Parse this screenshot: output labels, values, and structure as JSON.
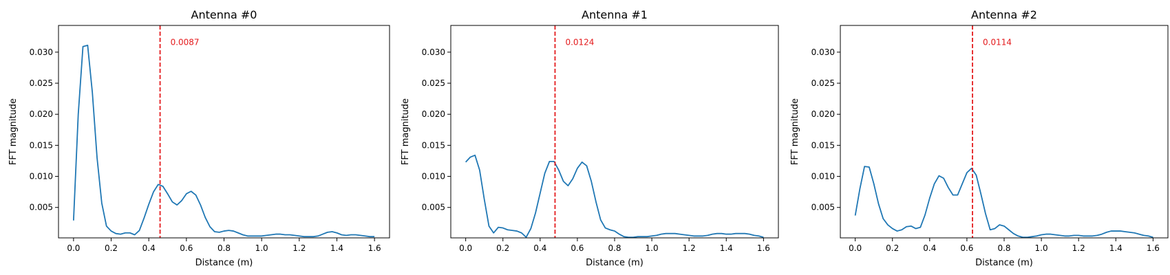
{
  "chart_data": [
    {
      "type": "line",
      "title": "Antenna #0",
      "xlabel": "Distance (m)",
      "ylabel": "FFT magnitude",
      "xlim": [
        -0.08,
        1.68
      ],
      "ylim": [
        0.0001,
        0.0343
      ],
      "xticks": [
        0.0,
        0.2,
        0.4,
        0.6,
        0.8,
        1.0,
        1.2,
        1.4,
        1.6
      ],
      "xtick_labels": [
        "0.0",
        "0.2",
        "0.4",
        "0.6",
        "0.8",
        "1.0",
        "1.2",
        "1.4",
        "1.6"
      ],
      "yticks": [
        0.005,
        0.01,
        0.015,
        0.02,
        0.025,
        0.03
      ],
      "ytick_labels": [
        "0.005",
        "0.010",
        "0.015",
        "0.020",
        "0.025",
        "0.030"
      ],
      "series": [
        {
          "color": "#1f77b4",
          "x": [
            0.0,
            0.025,
            0.05,
            0.075,
            0.1,
            0.125,
            0.15,
            0.175,
            0.2,
            0.225,
            0.25,
            0.275,
            0.3,
            0.325,
            0.35,
            0.375,
            0.4,
            0.425,
            0.45,
            0.475,
            0.5,
            0.525,
            0.55,
            0.575,
            0.6,
            0.625,
            0.65,
            0.675,
            0.7,
            0.725,
            0.75,
            0.775,
            0.8,
            0.825,
            0.85,
            0.875,
            0.9,
            0.925,
            0.95,
            0.975,
            1.0,
            1.025,
            1.05,
            1.075,
            1.1,
            1.125,
            1.15,
            1.175,
            1.2,
            1.225,
            1.25,
            1.275,
            1.3,
            1.325,
            1.35,
            1.375,
            1.4,
            1.425,
            1.45,
            1.475,
            1.5,
            1.525,
            1.55,
            1.575,
            1.6
          ],
          "y": [
            0.0029,
            0.02,
            0.0309,
            0.0311,
            0.0235,
            0.013,
            0.0057,
            0.002,
            0.0012,
            0.0008,
            0.0007,
            0.0009,
            0.0009,
            0.0006,
            0.0013,
            0.0033,
            0.0055,
            0.0075,
            0.0087,
            0.0084,
            0.0072,
            0.0059,
            0.0054,
            0.0061,
            0.0072,
            0.0076,
            0.007,
            0.0054,
            0.0034,
            0.0019,
            0.0011,
            0.001,
            0.0012,
            0.0013,
            0.0012,
            0.0009,
            0.0006,
            0.0004,
            0.0004,
            0.0004,
            0.0004,
            0.0005,
            0.0006,
            0.0007,
            0.0007,
            0.0006,
            0.0006,
            0.0005,
            0.0004,
            0.0003,
            0.0003,
            0.0003,
            0.0004,
            0.0007,
            0.001,
            0.0011,
            0.0009,
            0.0006,
            0.0005,
            0.0006,
            0.0006,
            0.0005,
            0.0004,
            0.0003,
            0.0003
          ]
        }
      ],
      "marker": {
        "x": 0.46,
        "label": "0.0087",
        "label_y": 0.0317,
        "color": "#e41a1c"
      }
    },
    {
      "type": "line",
      "title": "Antenna #1",
      "xlabel": "Distance (m)",
      "ylabel": "FFT magnitude",
      "xlim": [
        -0.08,
        1.68
      ],
      "ylim": [
        0.0001,
        0.0343
      ],
      "xticks": [
        0.0,
        0.2,
        0.4,
        0.6,
        0.8,
        1.0,
        1.2,
        1.4,
        1.6
      ],
      "xtick_labels": [
        "0.0",
        "0.2",
        "0.4",
        "0.6",
        "0.8",
        "1.0",
        "1.2",
        "1.4",
        "1.6"
      ],
      "yticks": [
        0.005,
        0.01,
        0.015,
        0.02,
        0.025,
        0.03
      ],
      "ytick_labels": [
        "0.005",
        "0.010",
        "0.015",
        "0.020",
        "0.025",
        "0.030"
      ],
      "series": [
        {
          "color": "#1f77b4",
          "x": [
            0.0,
            0.025,
            0.05,
            0.075,
            0.1,
            0.125,
            0.15,
            0.175,
            0.2,
            0.225,
            0.25,
            0.275,
            0.3,
            0.325,
            0.35,
            0.375,
            0.4,
            0.425,
            0.45,
            0.475,
            0.5,
            0.525,
            0.55,
            0.575,
            0.6,
            0.625,
            0.65,
            0.675,
            0.7,
            0.725,
            0.75,
            0.775,
            0.8,
            0.825,
            0.85,
            0.875,
            0.9,
            0.925,
            0.95,
            0.975,
            1.0,
            1.025,
            1.05,
            1.075,
            1.1,
            1.125,
            1.15,
            1.175,
            1.2,
            1.225,
            1.25,
            1.275,
            1.3,
            1.325,
            1.35,
            1.375,
            1.4,
            1.425,
            1.45,
            1.475,
            1.5,
            1.525,
            1.55,
            1.575,
            1.6
          ],
          "y": [
            0.0123,
            0.0131,
            0.0134,
            0.011,
            0.0063,
            0.002,
            0.0009,
            0.0018,
            0.0017,
            0.0014,
            0.0013,
            0.0012,
            0.0009,
            0.0002,
            0.0016,
            0.0041,
            0.0073,
            0.0105,
            0.0124,
            0.0124,
            0.011,
            0.0092,
            0.0085,
            0.0096,
            0.0113,
            0.0123,
            0.0117,
            0.0092,
            0.0059,
            0.003,
            0.0017,
            0.0014,
            0.0012,
            0.0007,
            0.0003,
            0.0002,
            0.0002,
            0.0003,
            0.0003,
            0.0003,
            0.0004,
            0.0005,
            0.0007,
            0.0008,
            0.0008,
            0.0008,
            0.0007,
            0.0006,
            0.0005,
            0.0004,
            0.0004,
            0.0004,
            0.0005,
            0.0007,
            0.0008,
            0.0008,
            0.0007,
            0.0007,
            0.0008,
            0.0008,
            0.0008,
            0.0007,
            0.0005,
            0.0004,
            0.0002
          ]
        }
      ],
      "marker": {
        "x": 0.48,
        "label": "0.0124",
        "label_y": 0.0317,
        "color": "#e41a1c"
      }
    },
    {
      "type": "line",
      "title": "Antenna #2",
      "xlabel": "Distance (m)",
      "ylabel": "FFT magnitude",
      "xlim": [
        -0.08,
        1.68
      ],
      "ylim": [
        0.0001,
        0.0343
      ],
      "xticks": [
        0.0,
        0.2,
        0.4,
        0.6,
        0.8,
        1.0,
        1.2,
        1.4,
        1.6
      ],
      "xtick_labels": [
        "0.0",
        "0.2",
        "0.4",
        "0.6",
        "0.8",
        "1.0",
        "1.2",
        "1.4",
        "1.6"
      ],
      "yticks": [
        0.005,
        0.01,
        0.015,
        0.02,
        0.025,
        0.03
      ],
      "ytick_labels": [
        "0.005",
        "0.010",
        "0.015",
        "0.020",
        "0.025",
        "0.030"
      ],
      "series": [
        {
          "color": "#1f77b4",
          "x": [
            0.0,
            0.025,
            0.05,
            0.075,
            0.1,
            0.125,
            0.15,
            0.175,
            0.2,
            0.225,
            0.25,
            0.275,
            0.3,
            0.325,
            0.35,
            0.375,
            0.4,
            0.425,
            0.45,
            0.475,
            0.5,
            0.525,
            0.55,
            0.575,
            0.6,
            0.625,
            0.65,
            0.675,
            0.7,
            0.725,
            0.75,
            0.775,
            0.8,
            0.825,
            0.85,
            0.875,
            0.9,
            0.925,
            0.95,
            0.975,
            1.0,
            1.025,
            1.05,
            1.075,
            1.1,
            1.125,
            1.15,
            1.175,
            1.2,
            1.225,
            1.25,
            1.275,
            1.3,
            1.325,
            1.35,
            1.375,
            1.4,
            1.425,
            1.45,
            1.475,
            1.5,
            1.525,
            1.55,
            1.575,
            1.6
          ],
          "y": [
            0.0037,
            0.008,
            0.0116,
            0.0115,
            0.0088,
            0.0056,
            0.0032,
            0.0022,
            0.0016,
            0.0012,
            0.0014,
            0.0019,
            0.002,
            0.0016,
            0.0018,
            0.0038,
            0.0065,
            0.0088,
            0.0101,
            0.0097,
            0.0082,
            0.007,
            0.007,
            0.0088,
            0.0106,
            0.0113,
            0.0102,
            0.0072,
            0.004,
            0.0014,
            0.0016,
            0.0022,
            0.002,
            0.0014,
            0.0008,
            0.0004,
            0.0002,
            0.0002,
            0.0003,
            0.0004,
            0.0006,
            0.0007,
            0.0007,
            0.0006,
            0.0005,
            0.0004,
            0.0004,
            0.0005,
            0.0005,
            0.0004,
            0.0004,
            0.0004,
            0.0005,
            0.0007,
            0.001,
            0.0012,
            0.0012,
            0.0012,
            0.0011,
            0.001,
            0.0009,
            0.0007,
            0.0005,
            0.0004,
            0.0002
          ]
        }
      ],
      "marker": {
        "x": 0.63,
        "label": "0.0114",
        "label_y": 0.0317,
        "color": "#e41a1c"
      }
    }
  ]
}
